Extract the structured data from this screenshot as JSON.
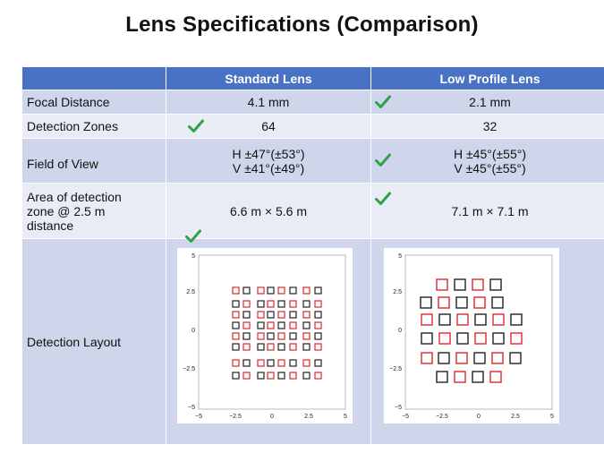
{
  "title": "Lens Specifications (Comparison)",
  "header": {
    "col1": "Standard Lens",
    "col2": "Low Profile Lens"
  },
  "rows": [
    {
      "label": "Focal Distance",
      "standard": "4.1 mm",
      "low": "2.1 mm",
      "check": "low"
    },
    {
      "label": "Detection Zones",
      "standard": "64",
      "low": "32",
      "check": "standard"
    },
    {
      "label": "Field of View",
      "standard_line1": "H ±47°(±53°)",
      "standard_line2": "V ±41°(±49°)",
      "low_line1": "H ±45°(±55°)",
      "low_line2": "V ±45°(±55°)",
      "check": "low"
    },
    {
      "label_line1": "Area of detection",
      "label_line2": "zone @ 2.5 m",
      "label_line3": "distance",
      "standard": "6.6 m × 5.6 m",
      "low": "7.1 m × 7.1 m",
      "check": "low"
    },
    {
      "label": "Detection Layout",
      "check": "standard"
    }
  ],
  "plot_ticks": {
    "x": [
      "−5",
      "−2.5",
      "0",
      "2.5",
      "5"
    ],
    "y": [
      "5",
      "2.5",
      "0",
      "−2.5",
      "−5"
    ]
  },
  "colors": {
    "header_bg": "#4a72c4",
    "row_dark": "#cfd5ea",
    "row_light": "#e9ecf5",
    "check_green": "#2da24a",
    "zone_red": "#e0262b",
    "zone_black": "#222222"
  }
}
